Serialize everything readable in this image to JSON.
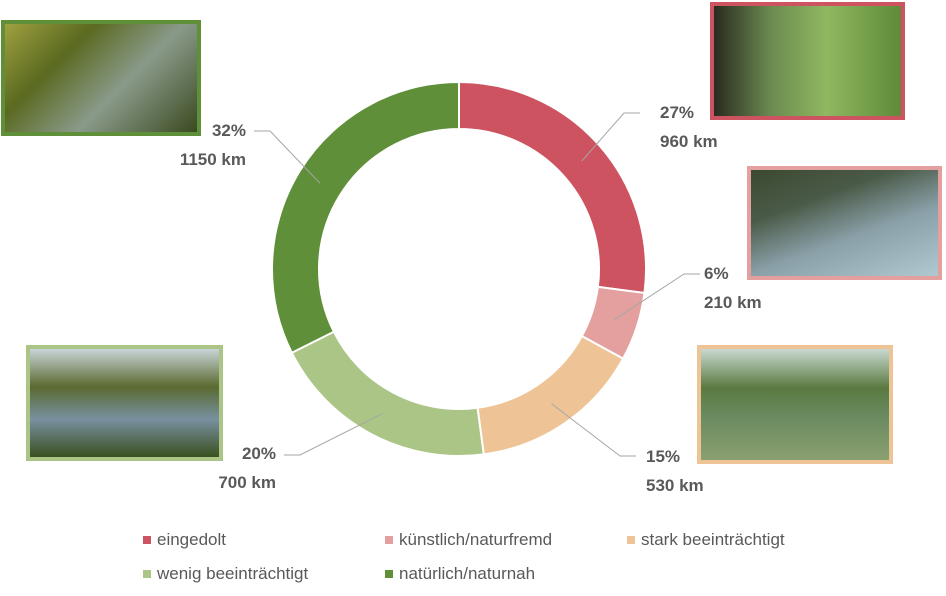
{
  "chart_data": {
    "type": "pie",
    "donut": true,
    "categories": [
      "eingedolt",
      "künstlich/naturfremd",
      "stark beeinträchtigt",
      "wenig beeinträchtigt",
      "natürlich/naturnah"
    ],
    "values": [
      960,
      210,
      530,
      700,
      1150
    ],
    "unit": "km",
    "percent_labels": [
      "27%",
      "6%",
      "15%",
      "20%",
      "32%"
    ],
    "value_labels": [
      "960 km",
      "210 km",
      "530 km",
      "700 km",
      "1150 km"
    ],
    "colors": [
      "#cd5360",
      "#e3a09e",
      "#eec497",
      "#aac585",
      "#5f8f39"
    ],
    "legend_placement": "bottom",
    "photos": [
      "river-culvert-photo",
      "concrete-channel-photo",
      "straightened-stream-photo",
      "meadow-stream-photo",
      "forest-stream-photo"
    ]
  }
}
